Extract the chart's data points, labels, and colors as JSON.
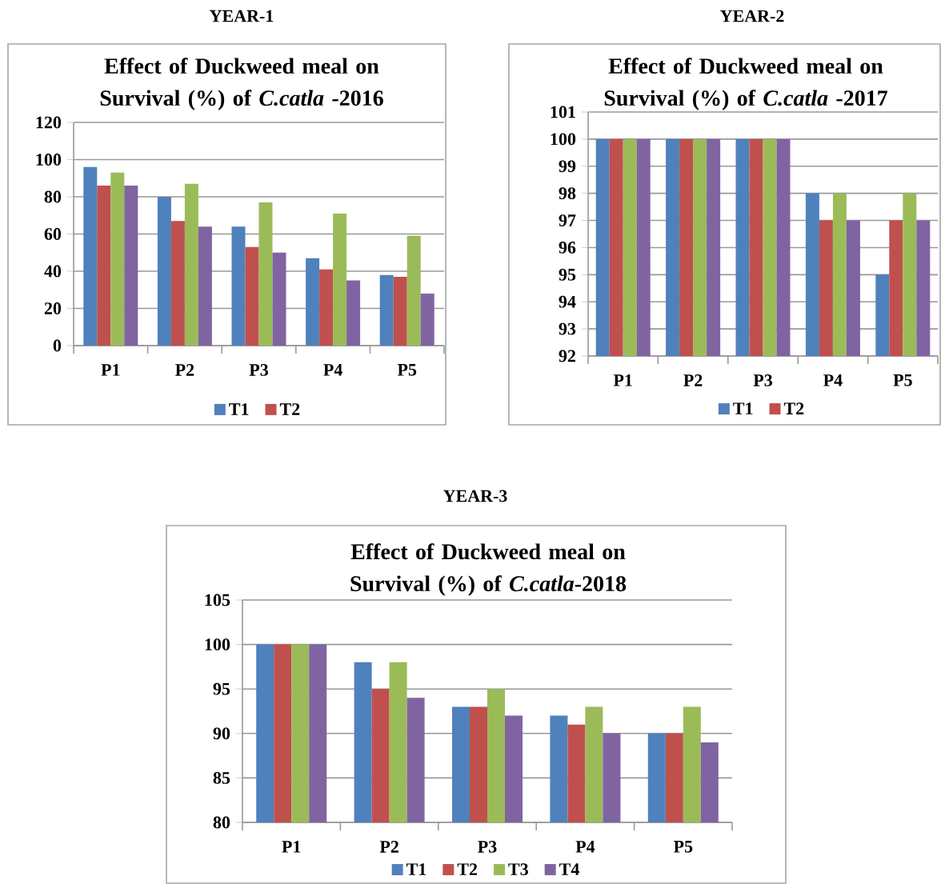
{
  "chart_data": [
    {
      "type": "bar",
      "title": "YEAR-1",
      "subtitle": "Effect of Duckweed meal on Survival (%) of *C.catla* -2016",
      "categories": [
        "P1",
        "P2",
        "P3",
        "P4",
        "P5"
      ],
      "series": [
        {
          "name": "T1",
          "color": "#4f81bd",
          "values": [
            96,
            80,
            64,
            47,
            38
          ]
        },
        {
          "name": "T2",
          "color": "#c0504d",
          "values": [
            86,
            67,
            53,
            41,
            37
          ]
        },
        {
          "color": "#9bbb59",
          "values": [
            93,
            87,
            77,
            71,
            59
          ]
        },
        {
          "color": "#8064a2",
          "values": [
            86,
            64,
            50,
            35,
            28
          ]
        }
      ],
      "ylim": [
        0,
        120
      ],
      "yticks": [
        0,
        20,
        40,
        60,
        80,
        100,
        120
      ],
      "grid": "y",
      "legend": "bottom"
    },
    {
      "type": "bar",
      "title": "YEAR-2",
      "subtitle": "Effect of Duckweed meal on Survival (%)  of *C.catla* -2017",
      "categories": [
        "P1",
        "P2",
        "P3",
        "P4",
        "P5"
      ],
      "series": [
        {
          "name": "T1",
          "color": "#4f81bd",
          "values": [
            100,
            100,
            100,
            98,
            95
          ]
        },
        {
          "name": "T2",
          "color": "#c0504d",
          "values": [
            100,
            100,
            100,
            97,
            97
          ]
        },
        {
          "color": "#9bbb59",
          "values": [
            100,
            100,
            100,
            98,
            98
          ]
        },
        {
          "color": "#8064a2",
          "values": [
            100,
            100,
            100,
            97,
            97
          ]
        }
      ],
      "ylim": [
        92,
        101
      ],
      "yticks": [
        92,
        93,
        94,
        95,
        96,
        97,
        98,
        99,
        100,
        101
      ],
      "grid": "y",
      "legend": "bottom"
    },
    {
      "type": "bar",
      "title": "YEAR-3",
      "subtitle": "Effect of Duckweed meal on Survival (%) of *C.catla*-2018",
      "categories": [
        "P1",
        "P2",
        "P3",
        "P4",
        "P5"
      ],
      "series": [
        {
          "name": "T1",
          "color": "#4f81bd",
          "values": [
            100,
            98,
            93,
            92,
            90
          ]
        },
        {
          "name": "T2",
          "color": "#c0504d",
          "values": [
            100,
            95,
            93,
            91,
            90
          ]
        },
        {
          "name": "T3",
          "color": "#9bbb59",
          "values": [
            100,
            98,
            95,
            93,
            93
          ]
        },
        {
          "name": "T4",
          "color": "#8064a2",
          "values": [
            100,
            94,
            92,
            90,
            89
          ]
        }
      ],
      "ylim": [
        80,
        105
      ],
      "yticks": [
        80,
        85,
        90,
        95,
        100,
        105
      ],
      "grid": "y",
      "legend": "bottom"
    }
  ]
}
